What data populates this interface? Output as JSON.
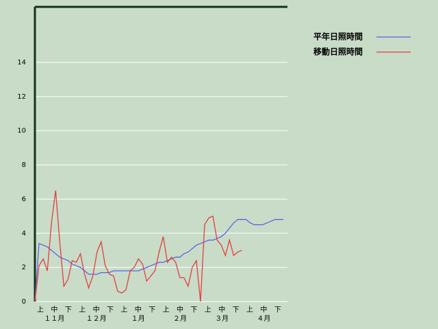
{
  "chart_data": {
    "type": "line",
    "ylim": [
      0,
      17.25
    ],
    "yticks": [
      0,
      2,
      4,
      6,
      8,
      10,
      12,
      14
    ],
    "grid": true,
    "legend_position": "top-right",
    "x_period_labels": [
      "上",
      "中",
      "下",
      "上",
      "中",
      "下",
      "上",
      "中",
      "下",
      "上",
      "中",
      "下",
      "上",
      "中",
      "下",
      "上",
      "中",
      "下"
    ],
    "x_month_labels": [
      "１１月",
      "１２月",
      "１月",
      "２月",
      "３月",
      "４月"
    ],
    "series": [
      {
        "name": "平年日照時間",
        "color": "#5a64e6",
        "values": [
          0,
          3.4,
          3.3,
          3.2,
          3.0,
          2.8,
          2.6,
          2.5,
          2.4,
          2.2,
          2.1,
          2.0,
          1.8,
          1.6,
          1.6,
          1.6,
          1.7,
          1.7,
          1.7,
          1.8,
          1.8,
          1.8,
          1.8,
          1.8,
          1.8,
          1.8,
          1.9,
          2.0,
          2.1,
          2.2,
          2.3,
          2.3,
          2.4,
          2.5,
          2.6,
          2.6,
          2.8,
          2.9,
          3.1,
          3.3,
          3.4,
          3.5,
          3.6,
          3.6,
          3.7,
          3.8,
          4.0,
          4.3,
          4.6,
          4.8,
          4.8,
          4.8,
          4.6,
          4.5,
          4.5,
          4.5,
          4.6,
          4.7,
          4.8,
          4.8,
          4.8
        ]
      },
      {
        "name": "移動日照時間",
        "color": "#e63c3c",
        "values": [
          0,
          2.1,
          2.5,
          1.8,
          4.6,
          6.5,
          3.5,
          0.9,
          1.3,
          2.4,
          2.3,
          2.8,
          1.6,
          0.8,
          1.5,
          2.9,
          3.5,
          2.1,
          1.6,
          1.5,
          0.6,
          0.5,
          0.7,
          1.8,
          2.0,
          2.5,
          2.2,
          1.2,
          1.5,
          1.8,
          2.9,
          3.8,
          2.3,
          2.6,
          2.3,
          1.4,
          1.4,
          0.9,
          2.0,
          2.4,
          0,
          4.5,
          4.9,
          5.0,
          3.6,
          3.3,
          2.7,
          3.6,
          2.7,
          2.9,
          3.0,
          null,
          null,
          null,
          null,
          null,
          null,
          null,
          null,
          null,
          null
        ]
      }
    ]
  }
}
